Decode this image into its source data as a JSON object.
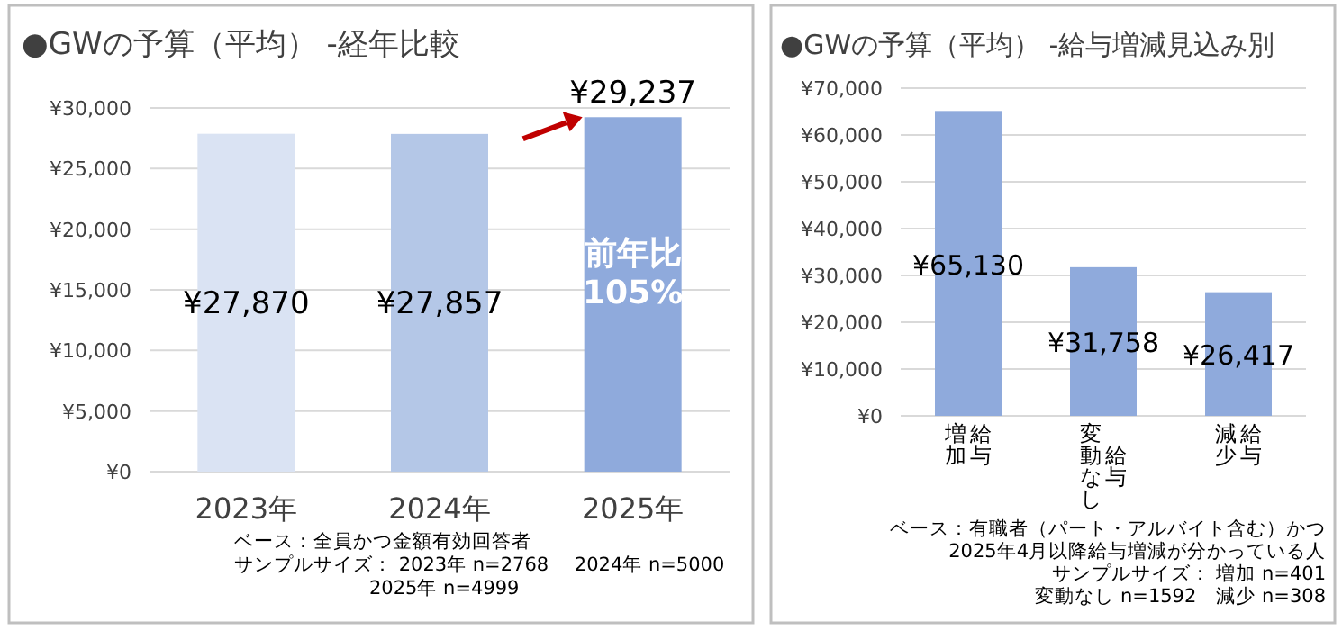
{
  "chart_data": [
    {
      "type": "bar",
      "title": "●GWの予算（平均） -経年比較",
      "categories": [
        "2023年",
        "2024年",
        "2025年"
      ],
      "values": [
        27870,
        27857,
        29237
      ],
      "colors": [
        "#dae3f3",
        "#b4c7e7",
        "#8faadc"
      ],
      "value_labels": [
        "¥27,870",
        "¥27,857",
        "¥29,237"
      ],
      "ylim": [
        0,
        30000
      ],
      "yticks": [
        {
          "value": 0,
          "label": "¥0"
        },
        {
          "value": 5000,
          "label": "¥5,000"
        },
        {
          "value": 10000,
          "label": "¥10,000"
        },
        {
          "value": 15000,
          "label": "¥15,000"
        },
        {
          "value": 20000,
          "label": "¥20,000"
        },
        {
          "value": 25000,
          "label": "¥25,000"
        },
        {
          "value": 30000,
          "label": "¥30,000"
        }
      ],
      "grid": "y",
      "annotations": [
        "前年比105%",
        "ベース：全員かつ金額有効回答者",
        "サンプルサイズ： 2023年 n=2768　 2024年 n=5000",
        "2025年 n=4999"
      ]
    },
    {
      "type": "bar",
      "title": "●GWの予算（平均） -給与増減見込み別",
      "categories": [
        "給与増加",
        "給与変動なし",
        "給与減少"
      ],
      "values": [
        65130,
        31758,
        26417
      ],
      "colors": [
        "#8faadc",
        "#8faadc",
        "#8faadc"
      ],
      "value_labels": [
        "¥65,130",
        "¥31,758",
        "¥26,417"
      ],
      "ylim": [
        0,
        70000
      ],
      "yticks": [
        {
          "value": 0,
          "label": "¥0"
        },
        {
          "value": 10000,
          "label": "¥10,000"
        },
        {
          "value": 20000,
          "label": "¥20,000"
        },
        {
          "value": 30000,
          "label": "¥30,000"
        },
        {
          "value": 40000,
          "label": "¥40,000"
        },
        {
          "value": 50000,
          "label": "¥50,000"
        },
        {
          "value": 60000,
          "label": "¥60,000"
        },
        {
          "value": 70000,
          "label": "¥70,000"
        }
      ],
      "grid": "y",
      "annotations": [
        "ベース：有職者（パート・アルバイト含む）かつ",
        "2025年4月以降給与増減が分かっている人",
        "サンプルサイズ： 増加 n=401",
        "変動なし n=1592　減少 n=308"
      ]
    }
  ]
}
